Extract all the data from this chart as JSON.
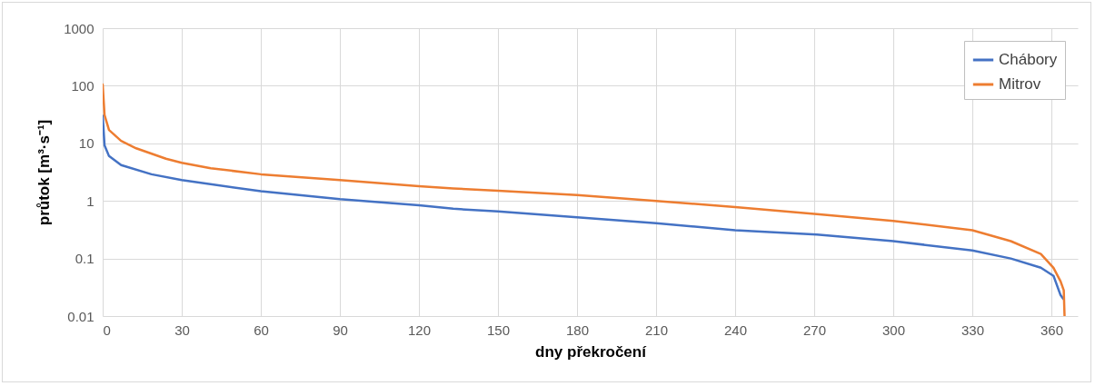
{
  "chart_data": {
    "type": "line",
    "xlabel": "dny překročení",
    "ylabel": "průtok [m³·s⁻¹]",
    "log": "y",
    "xlim": [
      0,
      370
    ],
    "xticks": [
      0,
      30,
      60,
      90,
      120,
      150,
      180,
      210,
      240,
      270,
      300,
      330,
      360
    ],
    "ylim": [
      0.01,
      1000
    ],
    "yticks": [
      0.01,
      0.1,
      1,
      10,
      100,
      1000
    ],
    "grid": true,
    "legend": "top right",
    "marker": "none",
    "line_style": "solid",
    "series": [
      {
        "name": "Chábory",
        "color": "#4472c4",
        "x": [
          0,
          0.7,
          2.4,
          7,
          18.5,
          30,
          60,
          90,
          120,
          133,
          150,
          180,
          210,
          240,
          271,
          300,
          330,
          344.6,
          356,
          360.8,
          363.5,
          364.5
        ],
        "values": [
          30,
          9.2,
          6,
          4.2,
          2.9,
          2.3,
          1.47,
          1.07,
          0.84,
          0.73,
          0.66,
          0.52,
          0.41,
          0.31,
          0.26,
          0.2,
          0.138,
          0.1,
          0.069,
          0.05,
          0.023,
          0.02
        ]
      },
      {
        "name": "Mitrov",
        "color": "#ed7d31",
        "x": [
          0,
          0.7,
          2.4,
          7,
          12.7,
          24,
          30,
          41,
          60,
          90,
          120,
          133,
          150,
          180,
          210,
          240,
          271,
          300,
          330,
          344.6,
          356,
          360.8,
          363.5,
          364.7,
          365
        ],
        "values": [
          105,
          31,
          17,
          11,
          8.2,
          5.4,
          4.6,
          3.7,
          2.9,
          2.3,
          1.8,
          1.65,
          1.5,
          1.26,
          1,
          0.78,
          0.59,
          0.45,
          0.31,
          0.2,
          0.12,
          0.069,
          0.04,
          0.028,
          0.01
        ]
      }
    ]
  }
}
